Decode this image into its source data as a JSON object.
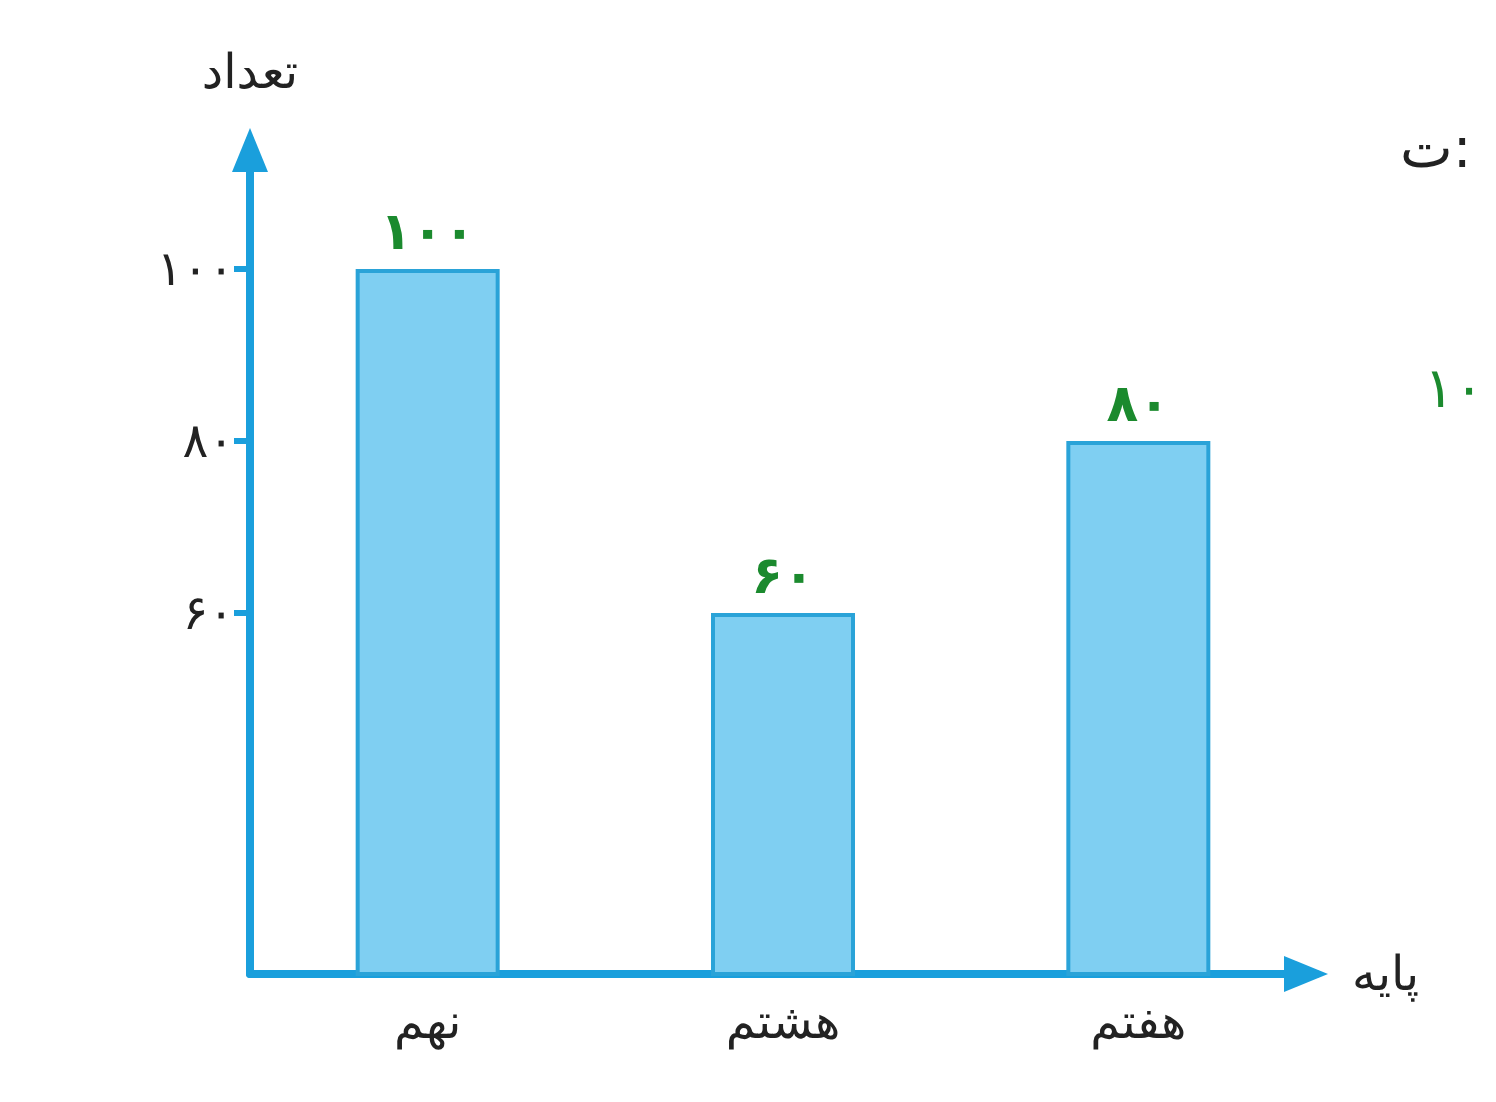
{
  "chart_data": {
    "type": "bar",
    "xlabel": "پایه",
    "ylabel": "تعداد",
    "categories": [
      "نهم",
      "هشتم",
      "هفتم"
    ],
    "values": [
      100,
      60,
      80
    ],
    "color": "#7fcff2",
    "value_labels": [
      "۱۰۰",
      "۶۰",
      "۸۰"
    ],
    "ylim": [
      18,
      115
    ],
    "yticks": [
      {
        "value": 60,
        "label": "۶۰"
      },
      {
        "value": 80,
        "label": "۸۰"
      },
      {
        "value": 100,
        "label": "۱۰۰"
      }
    ],
    "grid": false,
    "annotations": [
      "ت:",
      "۱۰"
    ]
  }
}
